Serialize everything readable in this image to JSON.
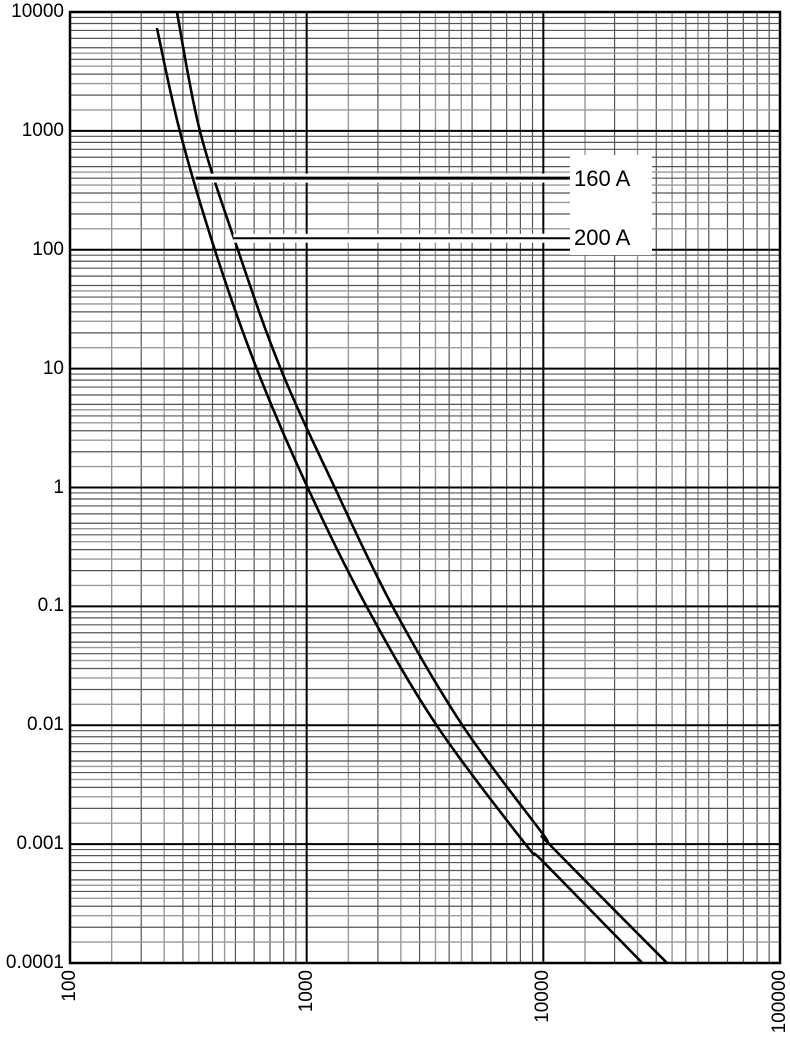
{
  "chart_data": {
    "type": "line",
    "title": "",
    "xlabel": "",
    "ylabel": "",
    "x_scale": "log",
    "y_scale": "log",
    "xlim": [
      100,
      100000
    ],
    "ylim": [
      0.0001,
      10000
    ],
    "x_ticks": [
      "100",
      "1000",
      "10000",
      "100000"
    ],
    "y_ticks": [
      "10000",
      "1000",
      "100",
      "10",
      "1",
      "0.1",
      "0.01",
      "0.001",
      "0.0001"
    ],
    "grid": true,
    "minor_grid_steps": [
      1.5,
      2,
      2.5,
      3,
      3.5,
      4,
      4.5,
      5,
      6,
      7,
      8,
      9
    ],
    "series": [
      {
        "name": "160 A",
        "x": [
          233,
          291,
          409,
          615,
          1009,
          1790,
          3540,
          8400,
          10000,
          26200
        ],
        "y": [
          7330,
          1000,
          100,
          10,
          1,
          0.1,
          0.01,
          0.001,
          0.00071,
          0.0001
        ]
      },
      {
        "name": "200 A",
        "x": [
          283,
          354,
          512,
          776,
          1313,
          2306,
          4550,
          10000,
          10600,
          33300
        ],
        "y": [
          10000,
          1000,
          100,
          10,
          1,
          0.1,
          0.01,
          0.0012,
          0.001,
          0.0001
        ]
      }
    ],
    "annotations": [
      {
        "text": "160 A",
        "leader_y": 400,
        "leader_x_from": 340
      },
      {
        "text": "200 A",
        "leader_y": 125,
        "leader_x_from": 490
      }
    ]
  },
  "labels": {
    "series_0": "160 A",
    "series_1": "200 A"
  }
}
